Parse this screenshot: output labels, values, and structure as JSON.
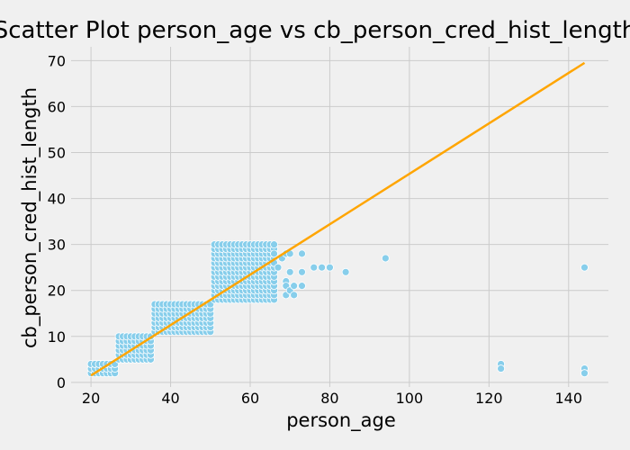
{
  "chart_data": {
    "type": "scatter",
    "title": "Scatter Plot person_age vs cb_person_cred_hist_length",
    "xlabel": "person_age",
    "ylabel": "cb_person_cred_hist_length",
    "xlim": [
      15,
      150
    ],
    "ylim": [
      -1,
      73
    ],
    "x_ticks": [
      20,
      40,
      60,
      80,
      100,
      120,
      140
    ],
    "y_ticks": [
      0,
      10,
      20,
      30,
      40,
      50,
      60,
      70
    ],
    "grid": true,
    "colors": {
      "points": "#87ceeb",
      "line": "#ffa500",
      "background": "#f0f0f0",
      "grid": "#cbcbcb"
    },
    "clusters": [
      {
        "x": [
          20,
          26
        ],
        "y": [
          2,
          4
        ]
      },
      {
        "x": [
          27,
          35
        ],
        "y": [
          5,
          10
        ]
      },
      {
        "x": [
          36,
          50
        ],
        "y": [
          11,
          17
        ]
      },
      {
        "x": [
          51,
          66
        ],
        "y": [
          18,
          30
        ]
      }
    ],
    "points": [
      [
        66,
        28
      ],
      [
        66,
        26
      ],
      [
        67,
        25
      ],
      [
        68,
        27
      ],
      [
        69,
        28
      ],
      [
        69,
        22
      ],
      [
        69,
        21
      ],
      [
        69,
        19
      ],
      [
        70,
        20
      ],
      [
        70,
        24
      ],
      [
        70,
        28
      ],
      [
        71,
        21
      ],
      [
        71,
        19
      ],
      [
        73,
        28
      ],
      [
        73,
        24
      ],
      [
        73,
        21
      ],
      [
        76,
        25
      ],
      [
        78,
        25
      ],
      [
        80,
        25
      ],
      [
        84,
        24
      ],
      [
        94,
        27
      ],
      [
        123,
        4
      ],
      [
        123,
        3
      ],
      [
        144,
        25
      ],
      [
        144,
        3
      ],
      [
        144,
        2
      ],
      [
        144,
        2
      ]
    ],
    "regression_line": {
      "x": [
        20,
        144
      ],
      "y": [
        1.5,
        69.5
      ]
    }
  }
}
